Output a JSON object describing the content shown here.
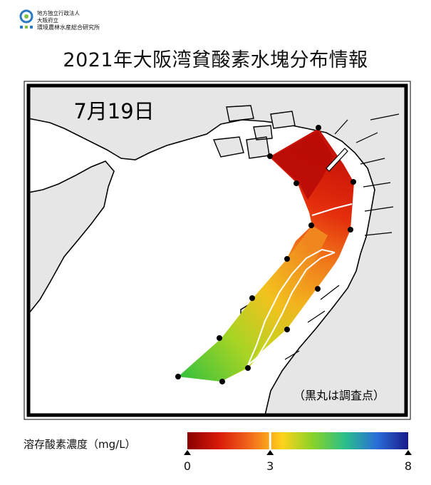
{
  "header": {
    "org_line1": "地方独立行政法人",
    "org_line2": "大阪府立",
    "org_line3": "環境農林水産総合研究所",
    "title": "2021年大阪湾貧酸素水塊分布情報"
  },
  "map": {
    "date_label": "7月19日",
    "note": "（黒丸は調査点）",
    "land_color": "#e6e6e6",
    "sea_color": "#ffffff",
    "point_color": "#000000"
  },
  "legend": {
    "label": "溶存酸素濃度（mg/L）",
    "ticks": [
      "0",
      "3",
      "8"
    ],
    "tick_values": [
      0,
      3,
      8
    ],
    "max_value": 8,
    "colors": [
      "#8a0000",
      "#d81a0a",
      "#f26a1c",
      "#ffd21a",
      "#86d22a",
      "#2abf8a",
      "#2a6ed8",
      "#1a1a8a"
    ]
  }
}
